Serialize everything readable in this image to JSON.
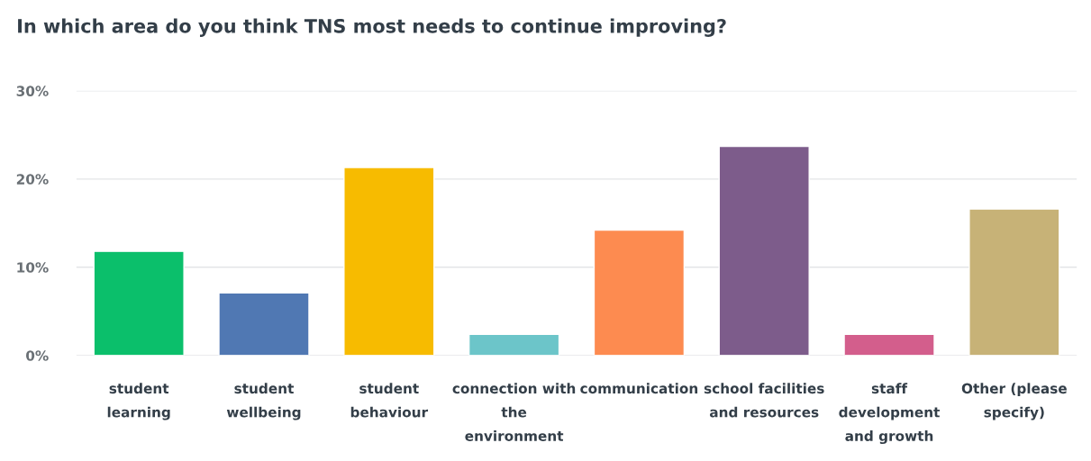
{
  "chart_data": {
    "type": "bar",
    "title": "In which area do you think TNS most needs to continue improving?",
    "categories": [
      "student\nlearning",
      "student\nwellbeing",
      "student\nbehaviour",
      "connection with\nthe\nenvironment",
      "communication",
      "school facilities\nand resources",
      "staff\ndevelopment\nand growth",
      "Other (please\nspecify)"
    ],
    "values": [
      11.8,
      7.1,
      21.3,
      2.4,
      14.2,
      23.7,
      2.4,
      16.6
    ],
    "colors": [
      "#0bbf6b",
      "#5078b3",
      "#f7bb00",
      "#6cc5c9",
      "#fd8b50",
      "#7d5c8b",
      "#d35e8c",
      "#c7b277"
    ],
    "ylim": [
      0,
      30
    ],
    "yticks": [
      {
        "value": 0,
        "label": "0%"
      },
      {
        "value": 10,
        "label": "10%"
      },
      {
        "value": 20,
        "label": "20%"
      },
      {
        "value": 30,
        "label": "30%"
      }
    ],
    "grid": "y"
  }
}
